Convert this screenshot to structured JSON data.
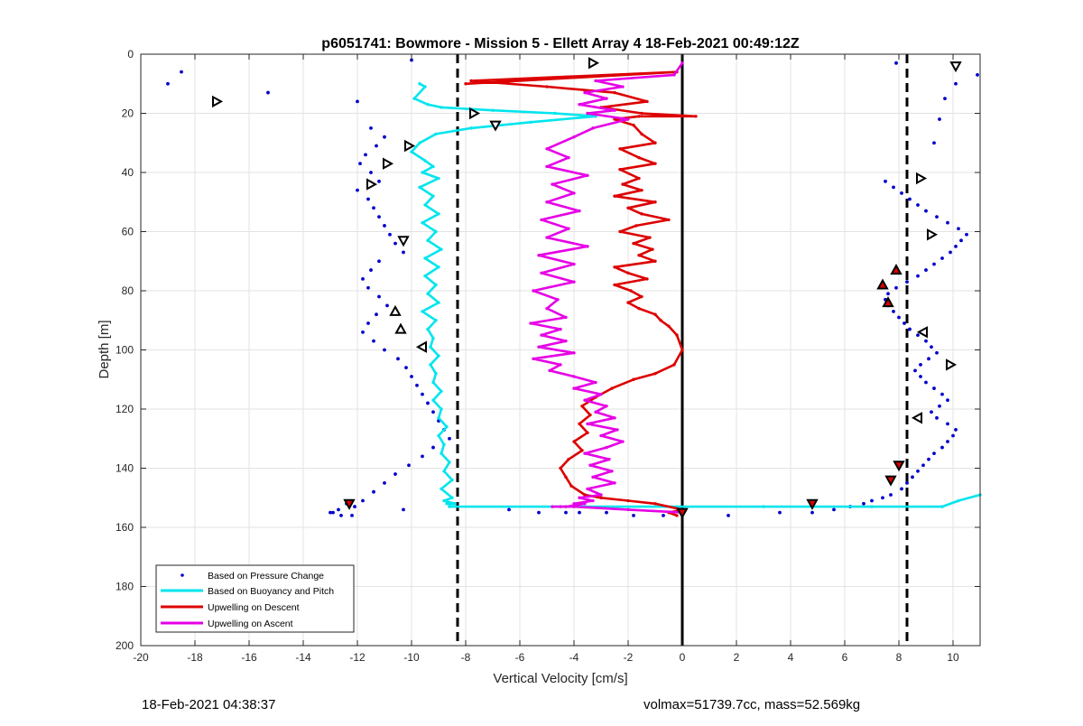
{
  "chart_data": {
    "type": "scatter",
    "title": "p6051741: Bowmore - Mission 5 - Ellett Array 4 18-Feb-2021 00:49:12Z",
    "xlabel": "Vertical Velocity [cm/s]",
    "ylabel": "Depth [m]",
    "xlim": [
      -20,
      11
    ],
    "ylim": [
      200,
      0
    ],
    "y_reversed": true,
    "grid": true,
    "legend_position": "bottom-left",
    "xticks": [
      "-20",
      "-18",
      "-16",
      "-14",
      "-12",
      "-10",
      "-8",
      "-6",
      "-4",
      "-2",
      "0",
      "2",
      "4",
      "6",
      "8",
      "10"
    ],
    "yticks": [
      "0",
      "20",
      "40",
      "60",
      "80",
      "100",
      "120",
      "140",
      "160",
      "180",
      "200"
    ],
    "reference_lines": [
      {
        "x": -8.3,
        "style": "dashed",
        "color": "#000000"
      },
      {
        "x": 0,
        "style": "solid",
        "color": "#000000"
      },
      {
        "x": 8.3,
        "style": "dashed",
        "color": "#000000"
      }
    ],
    "series": [
      {
        "name": "Based on Pressure Change",
        "kind": "points",
        "color": "#0000cc",
        "x": [
          -18.5,
          -19,
          -15.3,
          -12,
          -10,
          -11.5,
          -11,
          -11.3,
          -11.7,
          -11.9,
          -11.5,
          -11.2,
          -12.0,
          -11.6,
          -11.4,
          -11.2,
          -11.0,
          -10.8,
          -10.6,
          -10.3,
          -11.2,
          -11.5,
          -11.8,
          -11.6,
          -11.2,
          -10.9,
          -11.3,
          -11.6,
          -11.8,
          -11.4,
          -11.0,
          -10.5,
          -10.2,
          -10.0,
          -9.8,
          -9.6,
          -9.4,
          -9.2,
          -9.0,
          -8.8,
          -8.6,
          -9.2,
          -9.6,
          -10.1,
          -10.6,
          -11.0,
          -11.4,
          -11.8,
          -12.1,
          -12.4,
          -12.7,
          -12.9,
          -13.0,
          -12.6,
          -12.2,
          -10.3,
          -6.4,
          -5.3,
          -4.3,
          -3.8,
          -2.8,
          -1.8,
          -0.7,
          1.7,
          3.6,
          4.8,
          5.6,
          6.2,
          6.7,
          7.0,
          7.4,
          7.7,
          8.1,
          8.3,
          8.5,
          8.7,
          8.9,
          9.1,
          9.3,
          9.6,
          9.8,
          10.0,
          10.1,
          9.8,
          9.4,
          9.2,
          9.5,
          9.8,
          9.6,
          9.3,
          9.0,
          8.8,
          8.6,
          8.8,
          9.1,
          9.4,
          9.2,
          9.0,
          8.7,
          8.4,
          8.2,
          8.0,
          7.8,
          7.6,
          7.5,
          7.6,
          7.9,
          8.3,
          8.7,
          9.0,
          9.3,
          9.6,
          9.9,
          10.1,
          10.3,
          10.5,
          10.2,
          9.8,
          9.4,
          9.0,
          8.7,
          8.4,
          8.1,
          7.8,
          7.5,
          10.9,
          10.1,
          9.7,
          9.5,
          9.3,
          7.9
        ],
        "y": [
          6,
          10,
          13,
          16,
          2,
          25,
          28,
          31,
          34,
          37,
          40,
          43,
          46,
          49,
          52,
          55,
          58,
          61,
          64,
          67,
          70,
          73,
          76,
          79,
          82,
          85,
          88,
          91,
          94,
          97,
          100,
          103,
          106,
          109,
          112,
          115,
          118,
          121,
          124,
          127,
          130,
          133,
          136,
          139,
          142,
          145,
          148,
          151,
          153,
          152,
          154,
          155,
          155,
          156,
          156,
          154,
          154,
          155,
          155,
          155,
          155,
          156,
          156,
          156,
          155,
          155,
          154,
          153,
          152,
          151,
          150,
          149,
          147,
          145,
          143,
          141,
          139,
          137,
          135,
          133,
          131,
          129,
          127,
          125,
          123,
          121,
          119,
          117,
          115,
          113,
          111,
          109,
          107,
          105,
          103,
          101,
          99,
          97,
          95,
          93,
          91,
          89,
          87,
          85,
          83,
          81,
          79,
          77,
          75,
          73,
          71,
          69,
          67,
          65,
          63,
          61,
          59,
          57,
          55,
          53,
          51,
          49,
          47,
          45,
          43,
          7,
          10,
          15,
          22,
          30,
          3
        ]
      },
      {
        "name": "Based on Buoyancy and Pitch",
        "kind": "line",
        "color": "#00e5ee",
        "x": [
          -9.7,
          -9.5,
          -9.9,
          -9.4,
          -8.9,
          -7.0,
          -4.7,
          -3.2,
          -5.6,
          -7.8,
          -9.1,
          -9.7,
          -10.0,
          -9.5,
          -9.2,
          -9.6,
          -9.0,
          -9.7,
          -9.2,
          -9.5,
          -9.0,
          -9.6,
          -9.1,
          -9.4,
          -8.9,
          -9.5,
          -9.0,
          -9.5,
          -9.1,
          -9.4,
          -9.0,
          -9.6,
          -9.1,
          -9.4,
          -9.2,
          -9.3,
          -9.0,
          -9.3,
          -9.1,
          -9.2,
          -8.9,
          -9.2,
          -8.9,
          -9.0,
          -8.7,
          -9.0,
          -8.8,
          -8.9,
          -8.6,
          -8.8,
          -8.5,
          -8.9,
          -8.5,
          -8.8,
          -8.4,
          -8.7,
          -8.5,
          -8.6,
          -8.4,
          -8.6,
          -8.4,
          -8.6,
          -8.4,
          -8.5,
          -8.4,
          -8.5,
          -8.6,
          -8.4,
          -8.6,
          -8.6,
          3.0,
          7.0,
          9.6,
          10.2,
          11.0
        ],
        "y": [
          10,
          11,
          15,
          17,
          18,
          19,
          20,
          21,
          23,
          25,
          27,
          30,
          33,
          36,
          38,
          40,
          42,
          45,
          48,
          51,
          54,
          57,
          60,
          63,
          66,
          69,
          72,
          75,
          78,
          81,
          84,
          87,
          90,
          93,
          96,
          99,
          102,
          105,
          108,
          111,
          114,
          117,
          120,
          123,
          126,
          129,
          132,
          135,
          138,
          141,
          144,
          147,
          150,
          151,
          152,
          152,
          152,
          152,
          152,
          152,
          152,
          152,
          152,
          152,
          152,
          152,
          152,
          152,
          152,
          153,
          153,
          153,
          153,
          151,
          149
        ]
      },
      {
        "name": "Upwelling on Descent",
        "kind": "line",
        "color": "#dd0000",
        "x": [
          -8.0,
          -0.2,
          -7.8,
          -5.0,
          -2.5,
          -1.3,
          -3.0,
          -1.5,
          0.5,
          -1.6,
          -2.5,
          -1.8,
          -1.5,
          -1.0,
          -2.3,
          -1.6,
          -1.0,
          -2.3,
          -1.6,
          -2.2,
          -1.5,
          -2.5,
          -1.0,
          -2.0,
          -1.5,
          -0.5,
          -1.7,
          -2.3,
          -1.2,
          -1.8,
          -1.1,
          -1.6,
          -1.0,
          -2.5,
          -2.0,
          -1.3,
          -2.5,
          -1.9,
          -1.5,
          -2.0,
          -1.6,
          -1.0,
          -0.8,
          -0.5,
          -0.2,
          0,
          -0.3,
          -1.0,
          -1.8,
          -2.6,
          -3.2,
          -3.7,
          -3.4,
          -3.8,
          -3.5,
          -4.0,
          -3.7,
          -4.2,
          -4.5,
          -4.3,
          -4.1,
          -3.6,
          -3.0,
          -2.0,
          -1.0,
          0,
          -0.5,
          -0.2
        ],
        "y": [
          10,
          6,
          9,
          11,
          13,
          16,
          18,
          20,
          21,
          21,
          22,
          24,
          27,
          30,
          32,
          35,
          37,
          39,
          42,
          44,
          46,
          48,
          50,
          52,
          54,
          56,
          58,
          60,
          62,
          64,
          66,
          68,
          70,
          72,
          74,
          76,
          78,
          80,
          82,
          84,
          86,
          88,
          90,
          92,
          95,
          100,
          105,
          108,
          110,
          113,
          116,
          119,
          122,
          125,
          128,
          131,
          134,
          137,
          140,
          143,
          146,
          149,
          150,
          151,
          152,
          154,
          155,
          156
        ]
      },
      {
        "name": "Upwelling on Ascent",
        "kind": "line",
        "color": "#e600e6",
        "x": [
          0,
          -0.3,
          -3.2,
          -2.2,
          -3.6,
          -2.8,
          -3.8,
          -2.5,
          -3.5,
          -2.0,
          -3.3,
          -4.0,
          -5.0,
          -4.2,
          -5.0,
          -3.5,
          -4.8,
          -4.0,
          -5.0,
          -3.8,
          -5.2,
          -4.2,
          -5.0,
          -3.5,
          -5.3,
          -4.0,
          -5.2,
          -4.0,
          -5.5,
          -4.6,
          -5.0,
          -4.3,
          -5.6,
          -4.5,
          -5.2,
          -4.3,
          -5.3,
          -4.0,
          -5.5,
          -4.5,
          -4.9,
          -4.0,
          -3.2,
          -4.0,
          -3.0,
          -3.6,
          -2.8,
          -3.2,
          -2.5,
          -3.5,
          -2.4,
          -3.0,
          -2.2,
          -2.8,
          -3.6,
          -2.7,
          -3.4,
          -2.6,
          -3.3,
          -2.5,
          -3.5,
          -3.0,
          -3.8,
          -3.3,
          -4.0,
          -3.6,
          -4.3,
          -4.8,
          -4.5,
          -4.0,
          -2.0,
          0
        ],
        "y": [
          3,
          7,
          9,
          11,
          13,
          15,
          17,
          19,
          20,
          22,
          25,
          28,
          32,
          35,
          38,
          41,
          44,
          47,
          50,
          53,
          56,
          59,
          62,
          65,
          68,
          71,
          74,
          77,
          80,
          83,
          86,
          89,
          91,
          93,
          95,
          97,
          99,
          101,
          103,
          105,
          107,
          109,
          111,
          113,
          115,
          117,
          119,
          121,
          123,
          125,
          127,
          129,
          131,
          133,
          135,
          137,
          139,
          141,
          143,
          145,
          147,
          149,
          150,
          151,
          152,
          152,
          153,
          153,
          153,
          153,
          154,
          155
        ]
      },
      {
        "name": "",
        "kind": "markers",
        "marker": "triangle",
        "color": "#000000",
        "points": [
          {
            "x": -3.3,
            "y": 3,
            "dir": "right",
            "fill": "#ffffff"
          },
          {
            "x": -17.2,
            "y": 16,
            "dir": "right",
            "fill": "#ffffff"
          },
          {
            "x": -7.7,
            "y": 20,
            "dir": "right",
            "fill": "#ffffff"
          },
          {
            "x": -6.9,
            "y": 24,
            "dir": "down",
            "fill": "#ffffff"
          },
          {
            "x": -10.1,
            "y": 31,
            "dir": "right",
            "fill": "#ffffff"
          },
          {
            "x": -10.9,
            "y": 37,
            "dir": "right",
            "fill": "#ffffff"
          },
          {
            "x": -11.5,
            "y": 44,
            "dir": "right",
            "fill": "#ffffff"
          },
          {
            "x": -10.3,
            "y": 63,
            "dir": "down",
            "fill": "#ffffff"
          },
          {
            "x": -10.6,
            "y": 87,
            "dir": "up",
            "fill": "#ffffff"
          },
          {
            "x": -10.4,
            "y": 93,
            "dir": "up",
            "fill": "#ffffff"
          },
          {
            "x": -9.6,
            "y": 99,
            "dir": "left",
            "fill": "#ffffff"
          },
          {
            "x": -12.3,
            "y": 152,
            "dir": "down",
            "fill": "#dd0000"
          },
          {
            "x": 0,
            "y": 155,
            "dir": "down",
            "fill": "#dd0000"
          },
          {
            "x": 4.8,
            "y": 152,
            "dir": "down",
            "fill": "#dd0000"
          },
          {
            "x": 10.1,
            "y": 4,
            "dir": "down",
            "fill": "#ffffff"
          },
          {
            "x": 8.8,
            "y": 42,
            "dir": "right",
            "fill": "#ffffff"
          },
          {
            "x": 9.2,
            "y": 61,
            "dir": "right",
            "fill": "#ffffff"
          },
          {
            "x": 7.9,
            "y": 73,
            "dir": "up",
            "fill": "#dd0000"
          },
          {
            "x": 7.4,
            "y": 78,
            "dir": "up",
            "fill": "#dd0000"
          },
          {
            "x": 7.6,
            "y": 84,
            "dir": "up",
            "fill": "#dd0000"
          },
          {
            "x": 8.9,
            "y": 94,
            "dir": "left",
            "fill": "#ffffff"
          },
          {
            "x": 9.9,
            "y": 105,
            "dir": "right",
            "fill": "#ffffff"
          },
          {
            "x": 8.7,
            "y": 123,
            "dir": "left",
            "fill": "#ffffff"
          },
          {
            "x": 8.0,
            "y": 139,
            "dir": "down",
            "fill": "#dd0000"
          },
          {
            "x": 7.7,
            "y": 144,
            "dir": "down",
            "fill": "#dd0000"
          }
        ]
      }
    ]
  },
  "footer": {
    "left": "18-Feb-2021 04:38:37",
    "right": "volmax=51739.7cc, mass=52.569kg"
  }
}
